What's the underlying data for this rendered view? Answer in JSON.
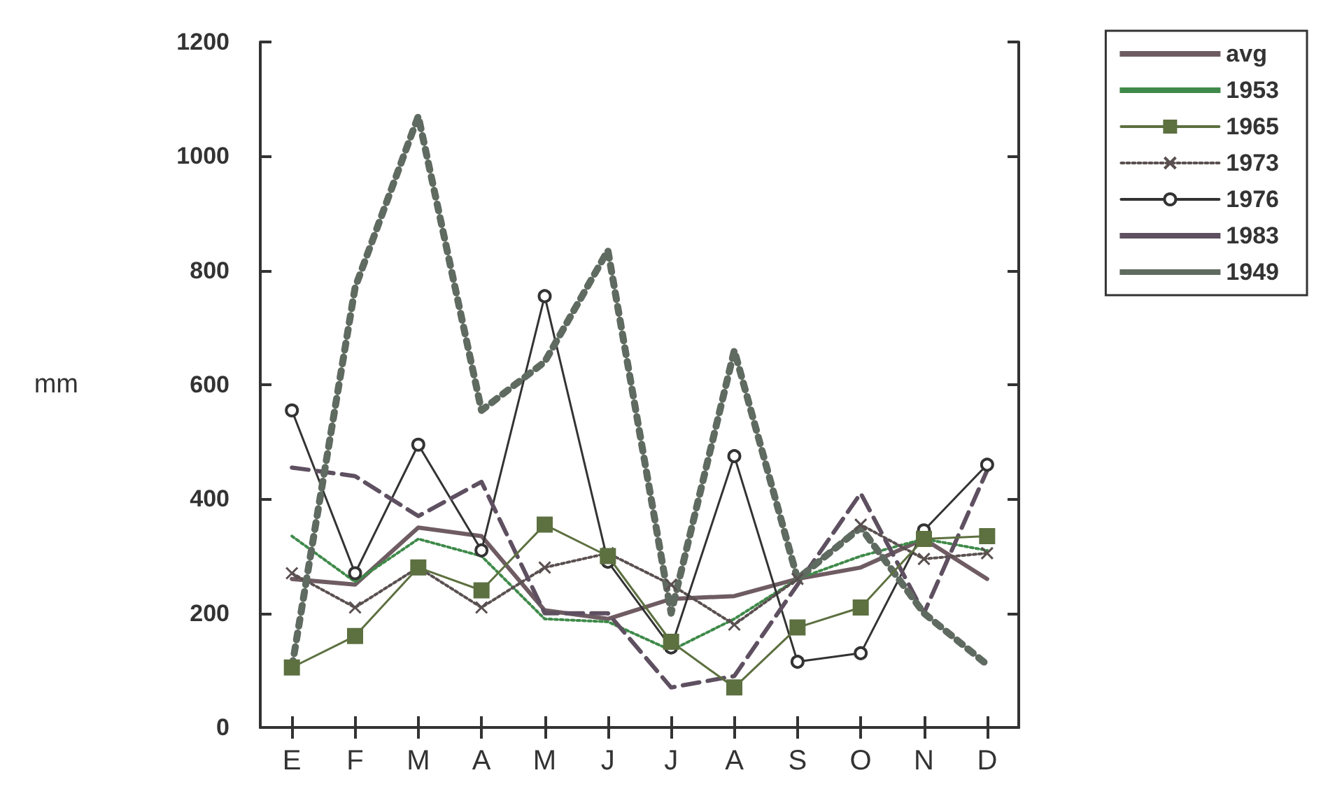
{
  "chart_data": {
    "type": "line",
    "ylabel": "mm",
    "categories": [
      "E",
      "F",
      "M",
      "A",
      "M",
      "J",
      "J",
      "A",
      "S",
      "O",
      "N",
      "D"
    ],
    "ylim": [
      0,
      1200
    ],
    "yticks": [
      0,
      200,
      400,
      600,
      800,
      1000,
      1200
    ],
    "grid": false,
    "legend": "top right",
    "series": [
      {
        "name": "avg",
        "color": "#6e5c62",
        "line_style": "solid",
        "marker": "none",
        "values": [
          260,
          250,
          350,
          335,
          205,
          190,
          225,
          230,
          260,
          280,
          330,
          260
        ]
      },
      {
        "name": "1953",
        "color": "#3f8a4a",
        "line_style": "dotted",
        "marker": "none",
        "values": [
          335,
          255,
          330,
          300,
          190,
          185,
          135,
          190,
          260,
          300,
          330,
          310
        ]
      },
      {
        "name": "1965",
        "color": "#5d7040",
        "line_style": "solid",
        "marker": "square",
        "values": [
          105,
          160,
          280,
          240,
          355,
          300,
          150,
          70,
          175,
          210,
          330,
          335
        ]
      },
      {
        "name": "1973",
        "color": "#5a5050",
        "line_style": "dotted",
        "marker": "cross",
        "values": [
          270,
          210,
          280,
          210,
          280,
          305,
          250,
          180,
          260,
          355,
          295,
          305
        ]
      },
      {
        "name": "1976",
        "color": "#333333",
        "line_style": "solid",
        "marker": "circle",
        "values": [
          555,
          270,
          495,
          310,
          755,
          290,
          140,
          475,
          115,
          130,
          345,
          460
        ]
      },
      {
        "name": "1983",
        "color": "#5e5060",
        "line_style": "dashed",
        "marker": "none",
        "values": [
          455,
          440,
          370,
          430,
          200,
          200,
          70,
          90,
          250,
          410,
          200,
          450
        ]
      },
      {
        "name": "1949",
        "color": "#5f6a60",
        "line_style": "dotted",
        "marker": "none",
        "values": [
          105,
          770,
          1070,
          555,
          640,
          835,
          200,
          660,
          260,
          350,
          200,
          110
        ]
      }
    ]
  }
}
